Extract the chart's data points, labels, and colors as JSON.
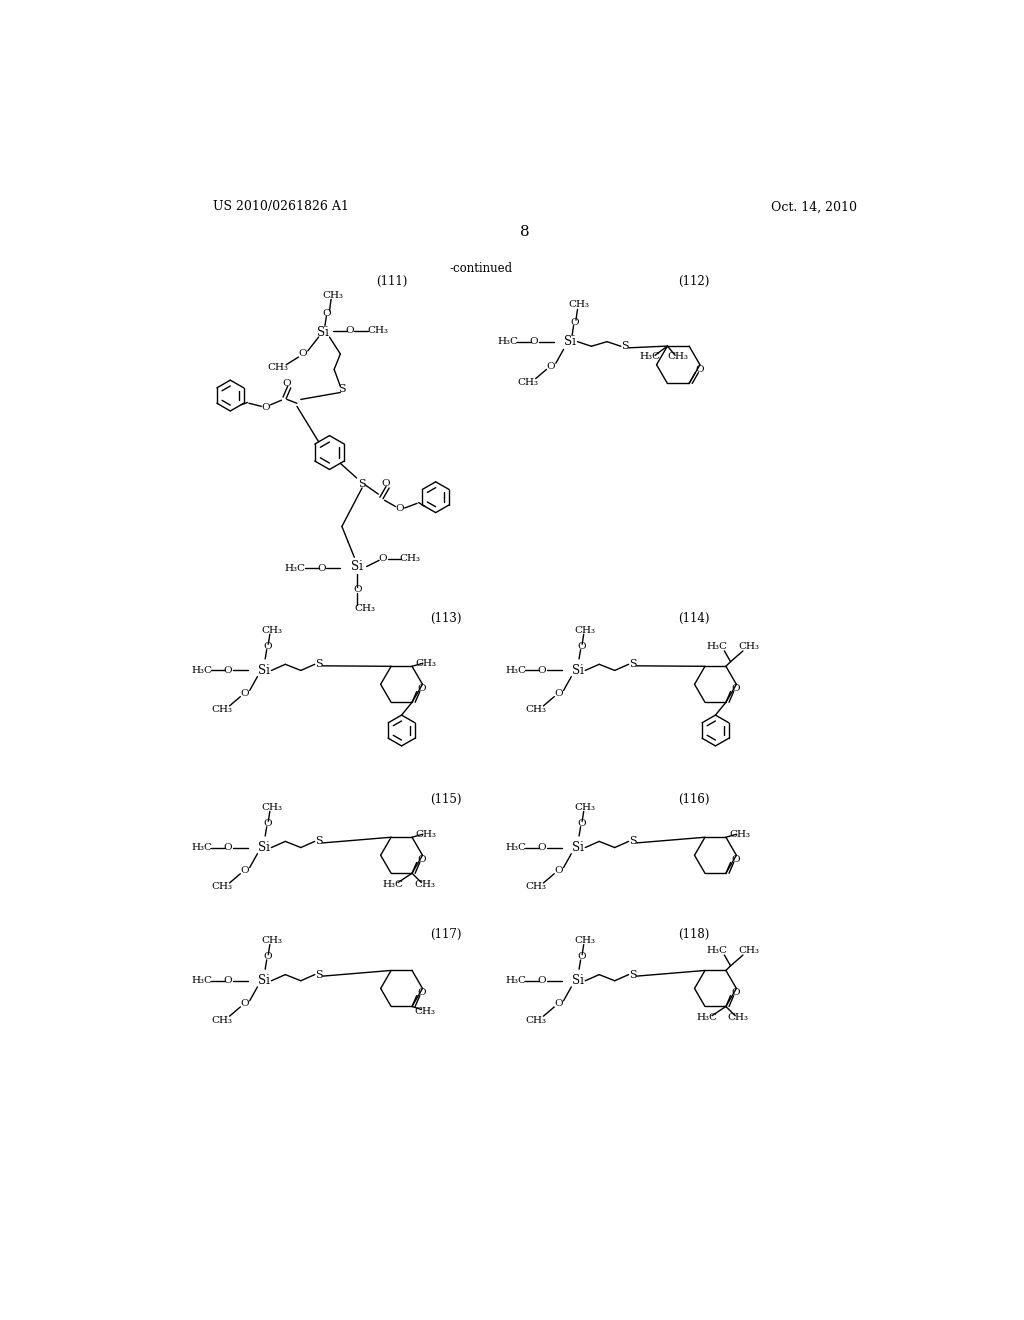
{
  "page_number": "8",
  "patent_number": "US 2010/0261826 A1",
  "patent_date": "Oct. 14, 2010",
  "continued_label": "-continued",
  "background_color": "#ffffff",
  "figsize": [
    10.24,
    13.2
  ],
  "dpi": 100
}
